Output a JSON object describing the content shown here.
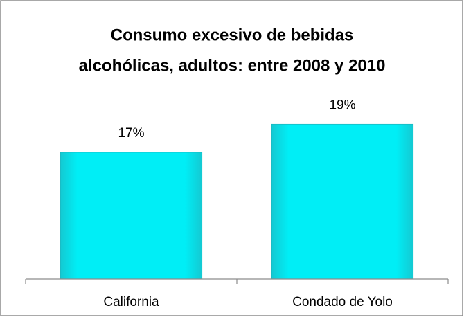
{
  "chart_data": {
    "type": "bar",
    "title": [
      "Consumo excesivo de bebidas",
      "alcohólicas, adultos: entre 2008 y 2010"
    ],
    "categories": [
      "California",
      "Condado de Yolo"
    ],
    "values": [
      17,
      19
    ],
    "value_labels": [
      "17%",
      "19%"
    ],
    "color": "#00e8f0",
    "ylim": [
      8,
      20
    ]
  }
}
